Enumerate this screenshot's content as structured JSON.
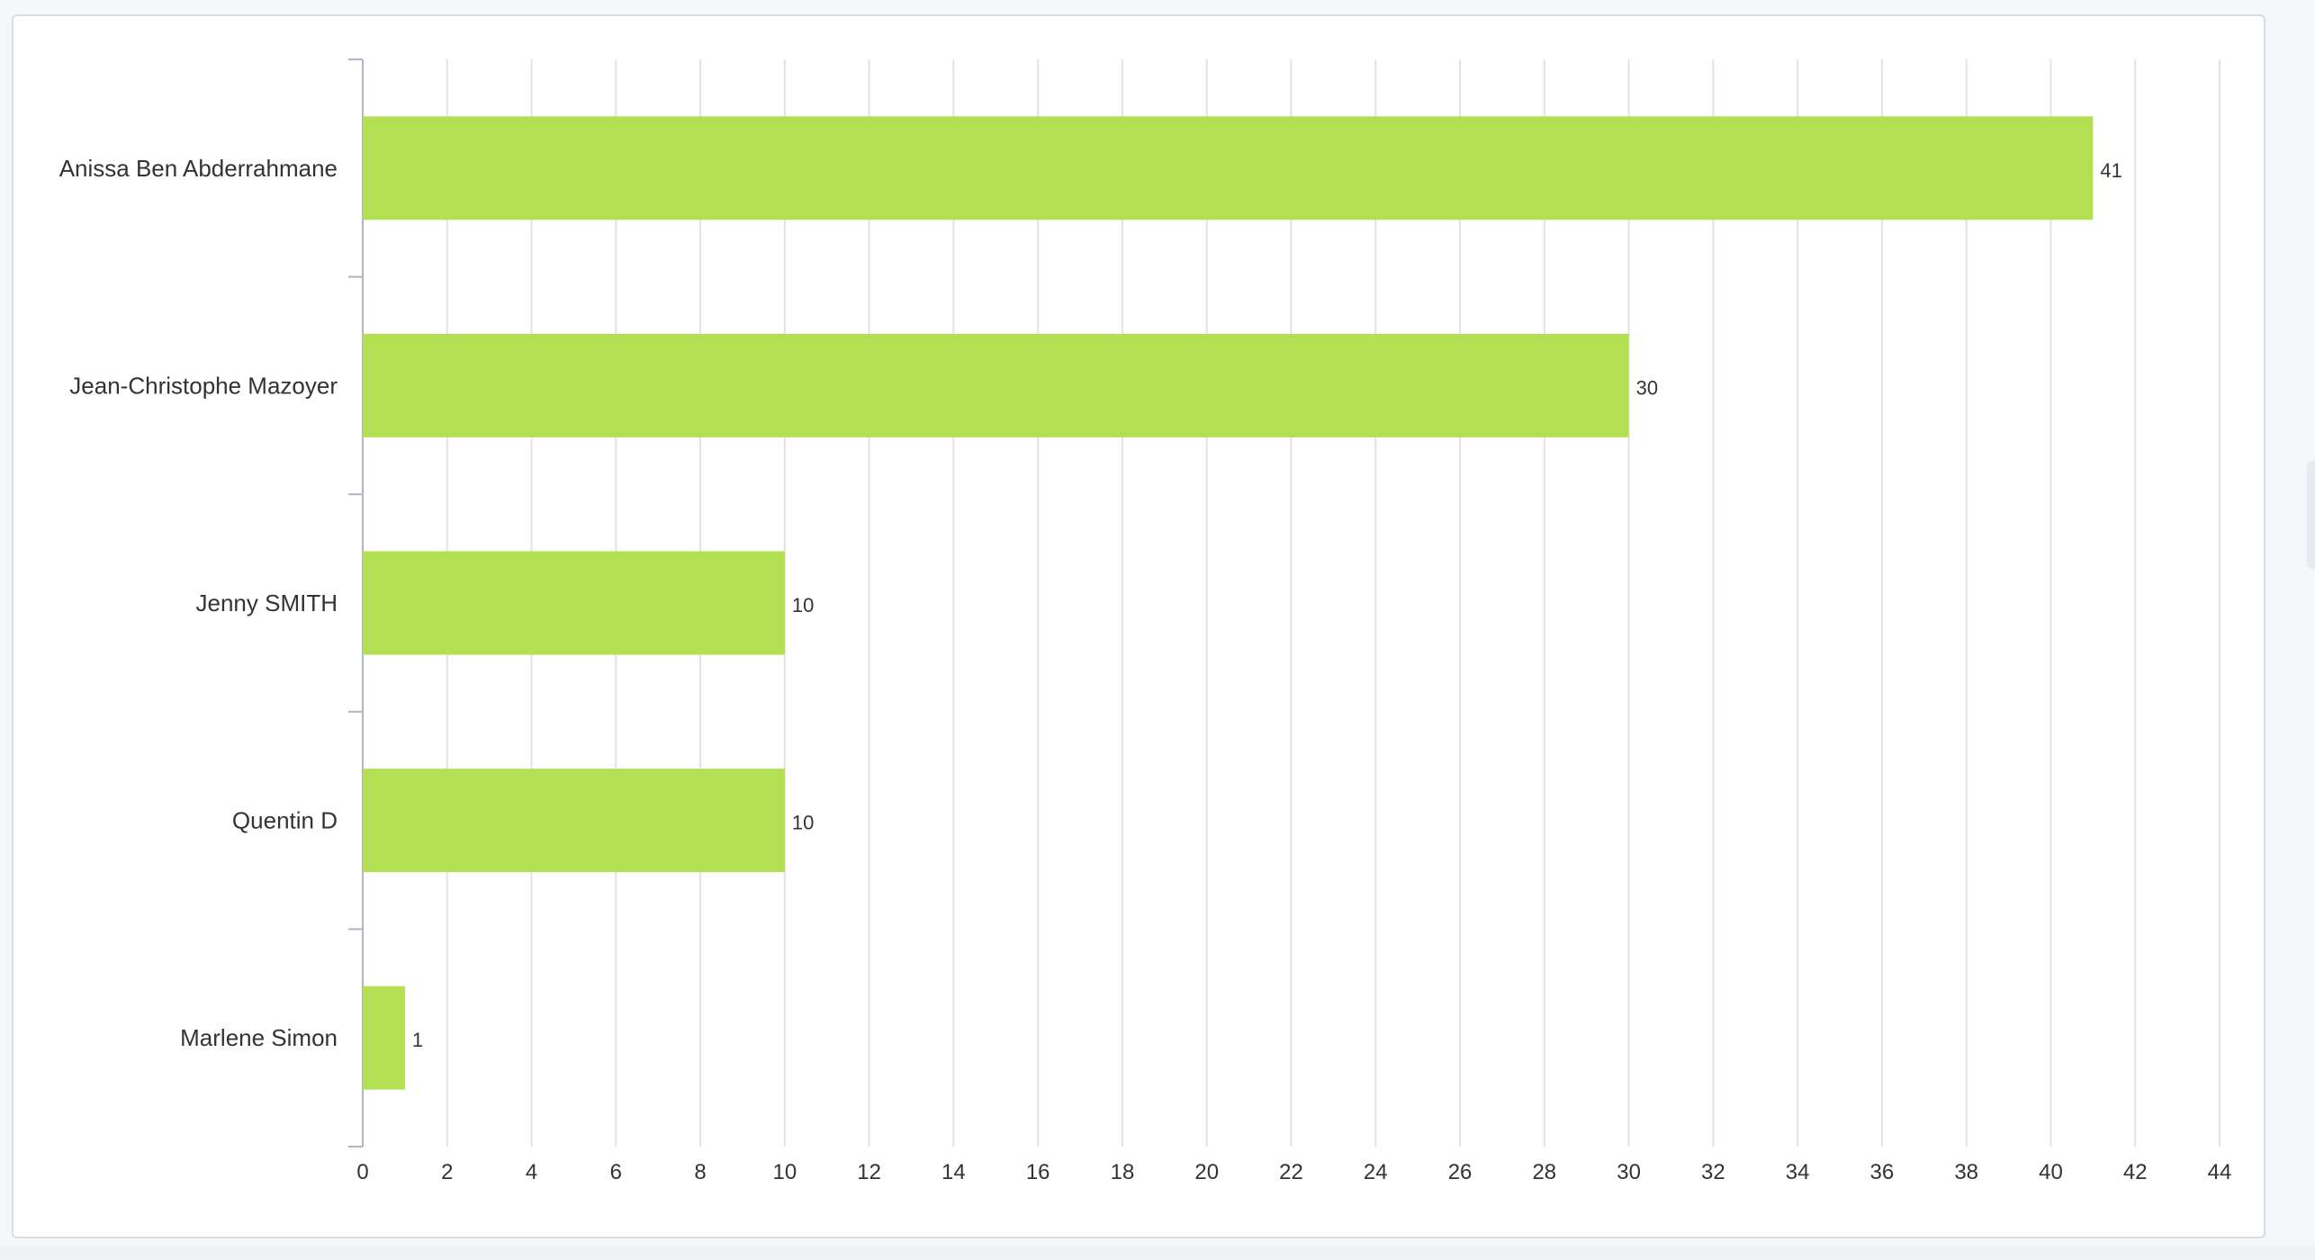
{
  "chart_data": {
    "type": "bar",
    "orientation": "horizontal",
    "categories": [
      "Anissa Ben Abderrahmane",
      "Jean-Christophe Mazoyer",
      "Jenny SMITH",
      "Quentin D",
      "Marlene Simon"
    ],
    "values": [
      41,
      30,
      10,
      10,
      1
    ],
    "xlim": [
      0,
      44
    ],
    "xticks": [
      "0",
      "2",
      "4",
      "6",
      "8",
      "10",
      "12",
      "14",
      "16",
      "18",
      "20",
      "22",
      "24",
      "26",
      "28",
      "30",
      "32",
      "34",
      "36",
      "38",
      "40",
      "42",
      "44"
    ],
    "grid": true,
    "bar_color": "#b3e052",
    "grid_color": "#dfe3e7",
    "axis_color": "#aeb8c2",
    "label_color": "#333333",
    "value_label_color": "#333333"
  }
}
